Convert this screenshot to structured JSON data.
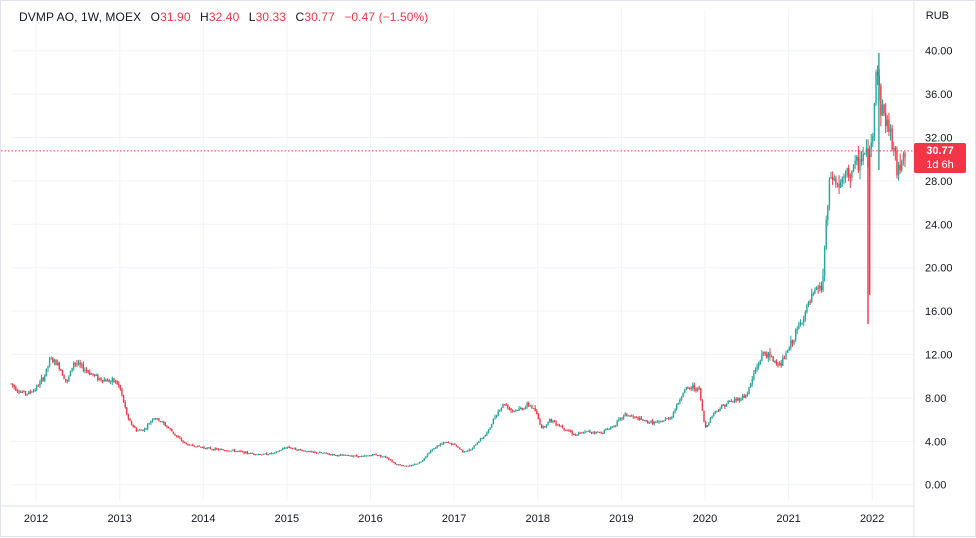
{
  "legend": {
    "symbol": "DVMP AO, 1W, MOEX",
    "o_key": "O",
    "o_val": "31.90",
    "h_key": "H",
    "h_val": "32.40",
    "l_key": "L",
    "l_val": "30.33",
    "c_key": "C",
    "c_val": "30.77",
    "change": "−0.47 (−1.50%)"
  },
  "currency": "RUB",
  "last_price": {
    "price": "30.77",
    "countdown": "1d 6h",
    "value": 30.77
  },
  "colors": {
    "up": "#26a69a",
    "down": "#f23645",
    "grid": "#f0f3fa",
    "text": "#131722"
  },
  "chart_data": {
    "type": "candlestick",
    "title": "DVMP AO, 1W, MOEX",
    "ylabel": "RUB",
    "ylim": [
      -1.5,
      42
    ],
    "yticks": [
      "0.00",
      "4.00",
      "8.00",
      "12.00",
      "16.00",
      "20.00",
      "24.00",
      "28.00",
      "32.00",
      "36.00",
      "40.00"
    ],
    "ytick_values": [
      0,
      4,
      8,
      12,
      16,
      20,
      24,
      28,
      32,
      36,
      40
    ],
    "xticks": [
      "2012",
      "2013",
      "2014",
      "2015",
      "2016",
      "2017",
      "2018",
      "2019",
      "2020",
      "2021",
      "2022"
    ],
    "xtick_values": [
      2012.15,
      2013.15,
      2014.15,
      2015.15,
      2016.15,
      2017.15,
      2018.15,
      2019.15,
      2020.15,
      2021.15,
      2022.15
    ],
    "xlim": [
      2011.85,
      2022.65
    ],
    "price_path": [
      [
        2011.85,
        9.3
      ],
      [
        2011.95,
        8.6
      ],
      [
        2012.05,
        8.4
      ],
      [
        2012.15,
        8.9
      ],
      [
        2012.25,
        10.0
      ],
      [
        2012.32,
        11.6
      ],
      [
        2012.42,
        11.0
      ],
      [
        2012.52,
        9.4
      ],
      [
        2012.6,
        11.3
      ],
      [
        2012.7,
        10.8
      ],
      [
        2012.8,
        10.3
      ],
      [
        2012.9,
        9.8
      ],
      [
        2013.0,
        9.6
      ],
      [
        2013.1,
        9.5
      ],
      [
        2013.15,
        9.0
      ],
      [
        2013.25,
        6.0
      ],
      [
        2013.35,
        5.0
      ],
      [
        2013.45,
        5.1
      ],
      [
        2013.55,
        6.2
      ],
      [
        2013.65,
        5.8
      ],
      [
        2013.75,
        5.1
      ],
      [
        2013.85,
        4.3
      ],
      [
        2013.95,
        3.7
      ],
      [
        2014.1,
        3.5
      ],
      [
        2014.25,
        3.3
      ],
      [
        2014.4,
        3.2
      ],
      [
        2014.55,
        3.1
      ],
      [
        2014.7,
        2.9
      ],
      [
        2014.85,
        2.8
      ],
      [
        2015.0,
        2.9
      ],
      [
        2015.15,
        3.5
      ],
      [
        2015.3,
        3.2
      ],
      [
        2015.45,
        3.0
      ],
      [
        2015.6,
        2.9
      ],
      [
        2015.75,
        2.7
      ],
      [
        2015.9,
        2.7
      ],
      [
        2016.05,
        2.6
      ],
      [
        2016.2,
        2.8
      ],
      [
        2016.35,
        2.5
      ],
      [
        2016.45,
        1.9
      ],
      [
        2016.6,
        1.7
      ],
      [
        2016.75,
        2.1
      ],
      [
        2016.85,
        3.0
      ],
      [
        2016.95,
        3.6
      ],
      [
        2017.05,
        3.9
      ],
      [
        2017.15,
        3.7
      ],
      [
        2017.25,
        3.1
      ],
      [
        2017.35,
        3.2
      ],
      [
        2017.45,
        4.1
      ],
      [
        2017.55,
        4.8
      ],
      [
        2017.65,
        6.5
      ],
      [
        2017.75,
        7.5
      ],
      [
        2017.85,
        6.8
      ],
      [
        2017.95,
        7.0
      ],
      [
        2018.05,
        7.4
      ],
      [
        2018.12,
        6.8
      ],
      [
        2018.2,
        5.2
      ],
      [
        2018.3,
        6.0
      ],
      [
        2018.45,
        5.3
      ],
      [
        2018.6,
        4.6
      ],
      [
        2018.75,
        4.9
      ],
      [
        2018.9,
        4.8
      ],
      [
        2019.05,
        5.4
      ],
      [
        2019.2,
        6.5
      ],
      [
        2019.3,
        6.2
      ],
      [
        2019.45,
        5.8
      ],
      [
        2019.6,
        5.7
      ],
      [
        2019.75,
        6.3
      ],
      [
        2019.9,
        8.7
      ],
      [
        2020.0,
        9.0
      ],
      [
        2020.08,
        8.8
      ],
      [
        2020.15,
        5.2
      ],
      [
        2020.25,
        6.6
      ],
      [
        2020.4,
        7.5
      ],
      [
        2020.55,
        7.9
      ],
      [
        2020.65,
        8.3
      ],
      [
        2020.75,
        10.5
      ],
      [
        2020.85,
        12.2
      ],
      [
        2020.95,
        11.6
      ],
      [
        2021.05,
        11.0
      ],
      [
        2021.15,
        12.5
      ],
      [
        2021.3,
        15.0
      ],
      [
        2021.4,
        16.8
      ],
      [
        2021.5,
        18.2
      ],
      [
        2021.55,
        18.0
      ],
      [
        2021.6,
        24.0
      ],
      [
        2021.65,
        28.5
      ],
      [
        2021.75,
        27.5
      ],
      [
        2021.85,
        28.5
      ],
      [
        2021.95,
        29.3
      ],
      [
        2022.05,
        30.5
      ],
      [
        2022.1,
        30.0
      ],
      [
        2022.15,
        31.5
      ],
      [
        2022.2,
        39.0
      ],
      [
        2022.25,
        35.0
      ],
      [
        2022.32,
        33.5
      ],
      [
        2022.4,
        31.5
      ],
      [
        2022.45,
        28.5
      ],
      [
        2022.52,
        30.8
      ],
      [
        2022.56,
        30.77
      ]
    ],
    "spikes": [
      [
        2022.1,
        14.8,
        31.0
      ],
      [
        2022.12,
        17.5,
        30.5
      ],
      [
        2022.23,
        29.0,
        39.8
      ]
    ],
    "last_value_line": 30.77
  }
}
